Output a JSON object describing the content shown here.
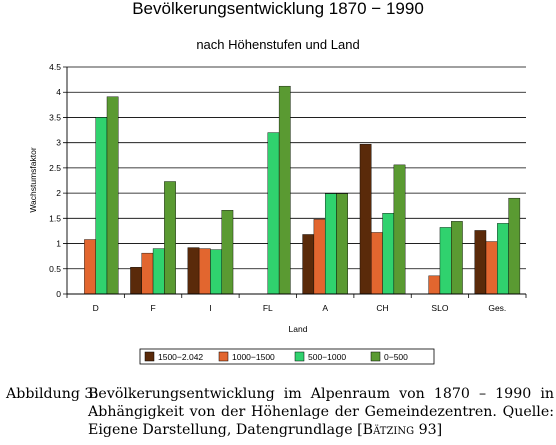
{
  "chart_data": {
    "type": "bar",
    "title": "Bevölkerungsentwicklung 1870 − 1990",
    "subtitle": "nach Höhenstufen und Land",
    "xlabel": "Land",
    "ylabel": "Wachstumsfaktor",
    "ylim": [
      0,
      4.5
    ],
    "yticks": [
      "0",
      "0.5",
      "1",
      "1.5",
      "2",
      "2.5",
      "3",
      "3.5",
      "4",
      "4.5"
    ],
    "grid": true,
    "legend_position": "bottom",
    "categories": [
      "D",
      "F",
      "I",
      "FL",
      "A",
      "CH",
      "SLO",
      "Ges."
    ],
    "series": [
      {
        "name": "1500−2.042",
        "color": "#5a2a0a",
        "values": [
          null,
          0.53,
          0.92,
          null,
          1.18,
          2.97,
          null,
          1.26
        ]
      },
      {
        "name": "1000−1500",
        "color": "#e2662f",
        "values": [
          1.08,
          0.81,
          0.9,
          null,
          1.48,
          1.22,
          0.36,
          1.04
        ]
      },
      {
        "name": "500−1000",
        "color": "#30d26e",
        "values": [
          3.5,
          0.9,
          0.88,
          3.2,
          1.99,
          1.6,
          1.32,
          1.4
        ]
      },
      {
        "name": "0−500",
        "color": "#5a9a32",
        "values": [
          3.91,
          2.23,
          1.66,
          4.12,
          1.99,
          2.56,
          1.44,
          1.9
        ]
      }
    ]
  },
  "caption": {
    "label": "Abbildung 3:",
    "text_before": "Bevölkerungsentwicklung im Alpenraum von 1870 – 1990 in Abhängigkeit von der Höhenlage der Gemeindezentren. Quelle: Eigene Darstellung, Datengrundlage [",
    "citation": "Bätzing",
    "text_after": " 93]"
  }
}
